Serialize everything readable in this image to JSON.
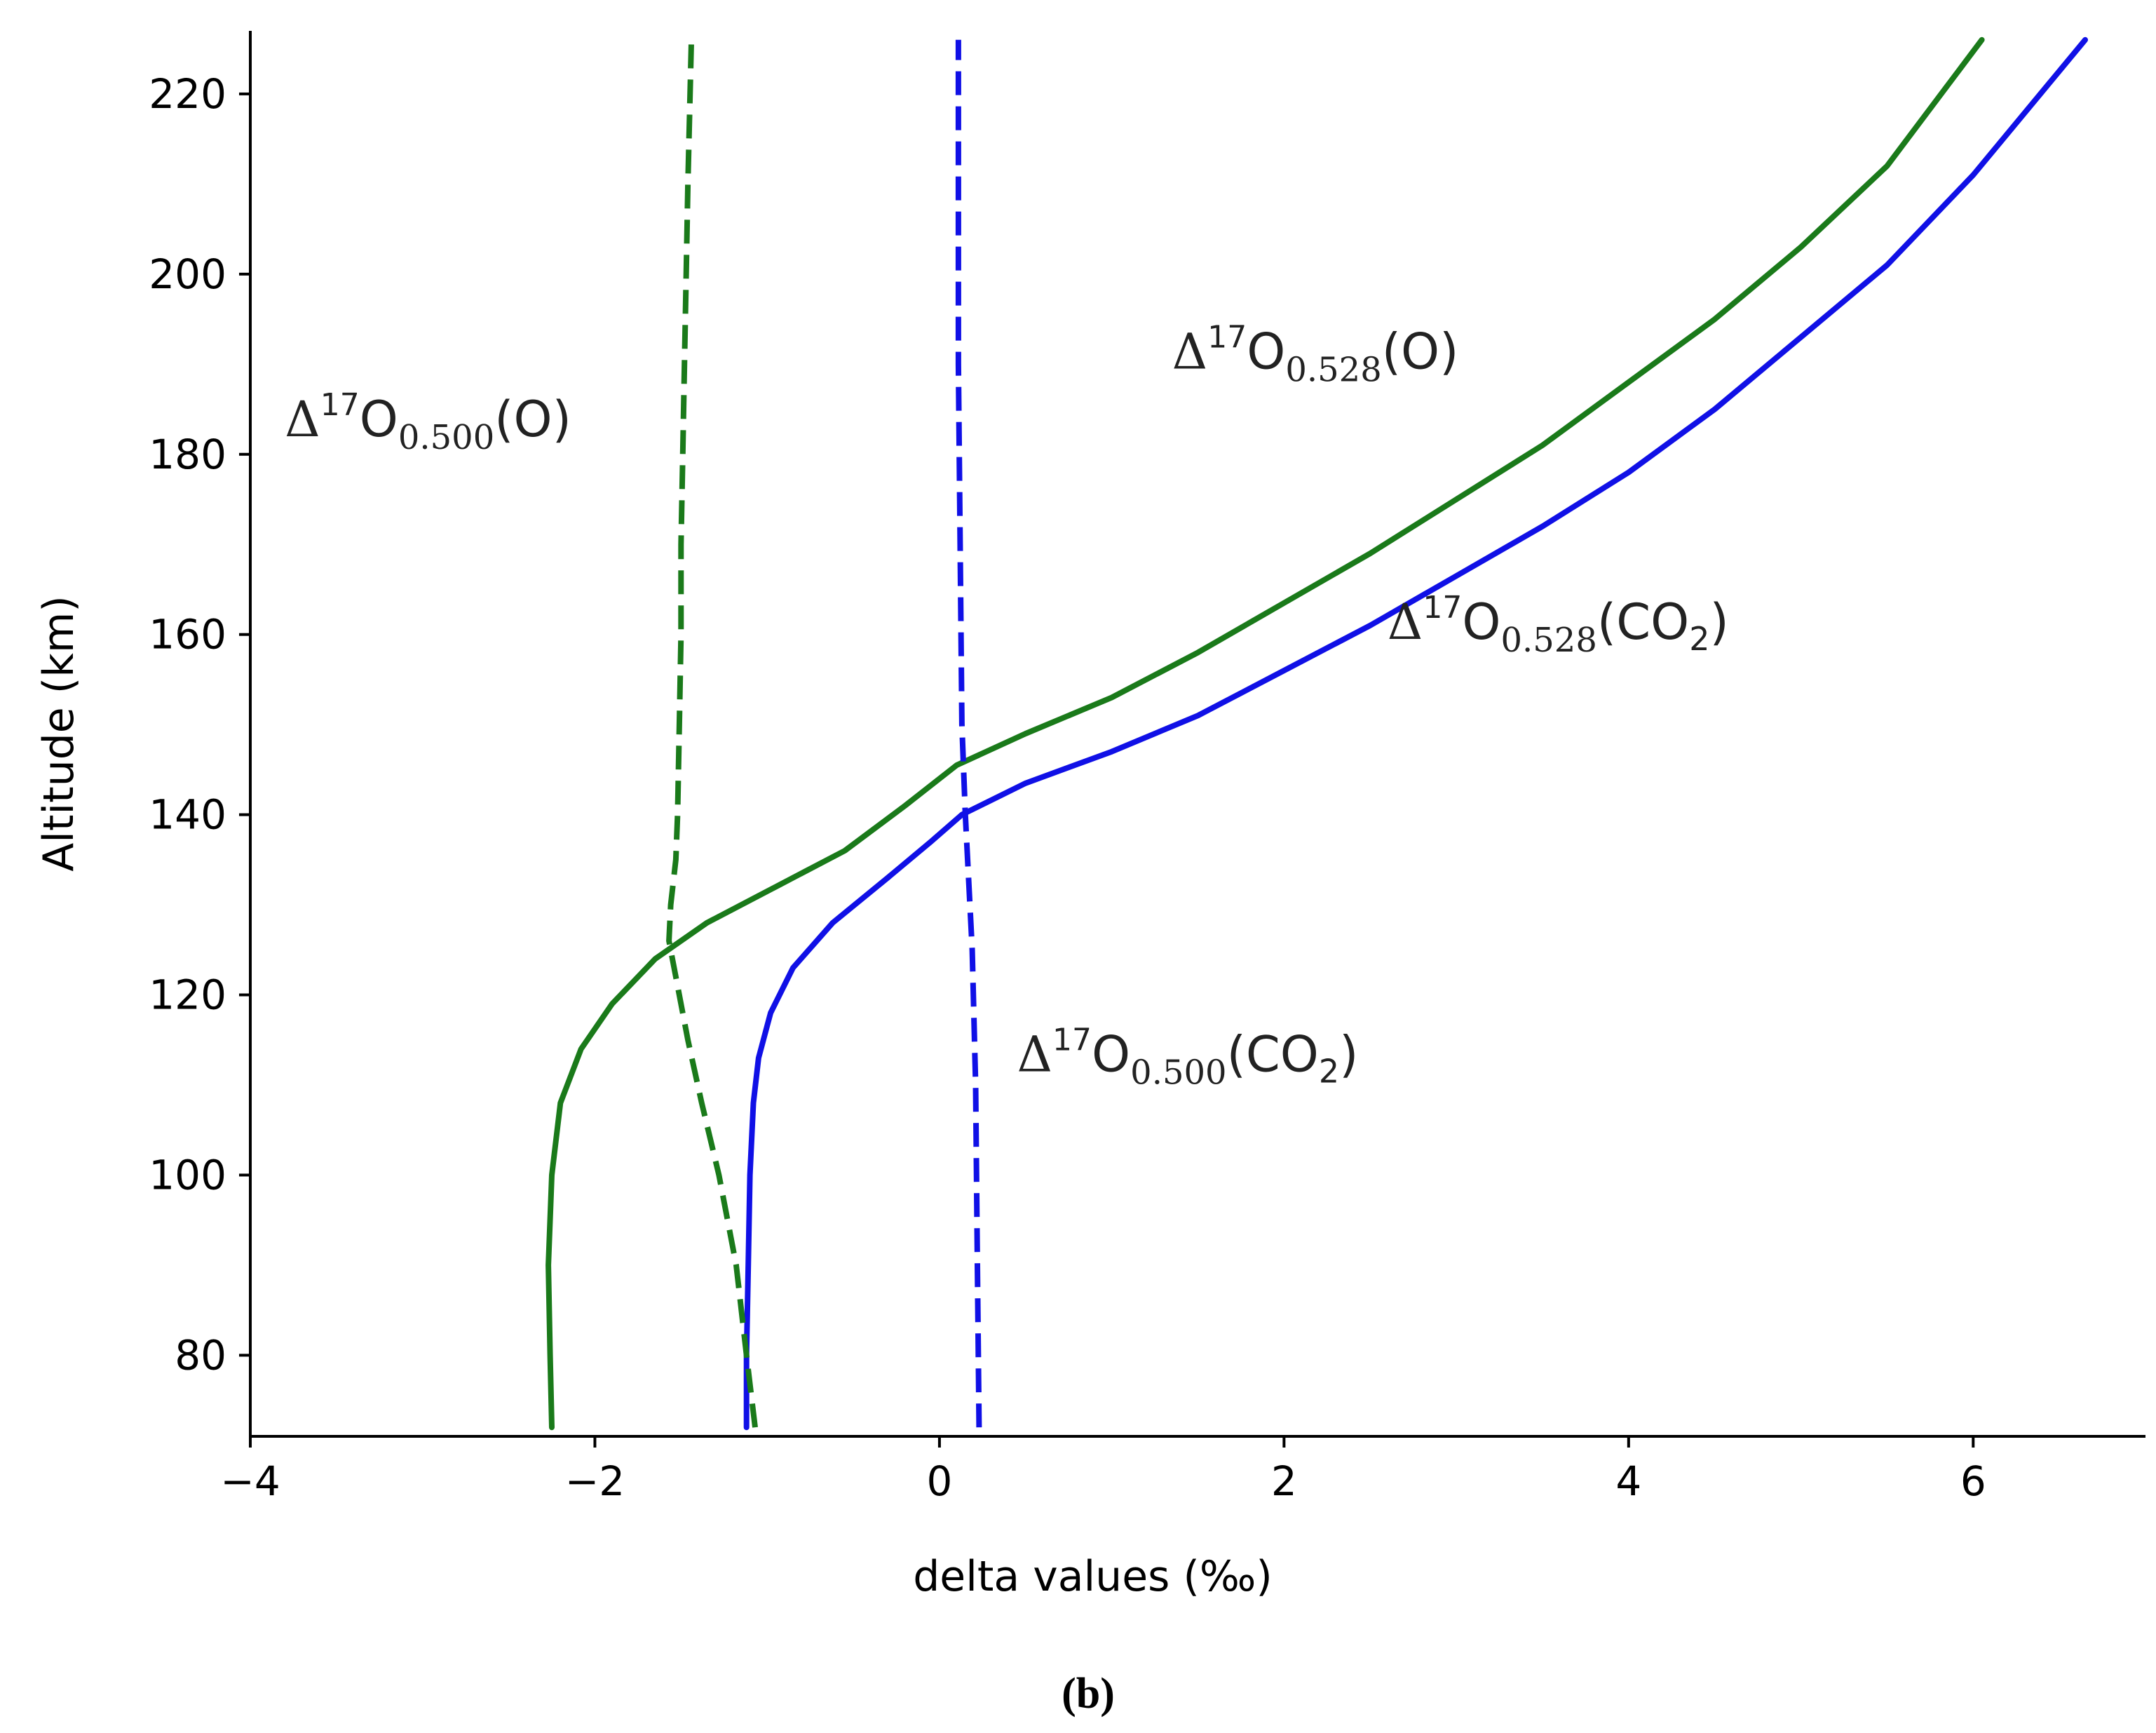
{
  "chart_data": {
    "type": "line",
    "xlabel": "delta values (‰)",
    "ylabel": "Altitude (km)",
    "xlim": [
      -4,
      7
    ],
    "ylim": [
      71,
      227
    ],
    "xticks": [
      -4,
      -2,
      0,
      2,
      4,
      6
    ],
    "xtick_labels": [
      "−4",
      "−2",
      "0",
      "2",
      "4",
      "6"
    ],
    "yticks": [
      80,
      100,
      120,
      140,
      160,
      180,
      200,
      220
    ],
    "ytick_labels": [
      "80",
      "100",
      "120",
      "140",
      "160",
      "180",
      "200",
      "220"
    ],
    "grid": false,
    "panel_label": "(b)",
    "series": [
      {
        "key": "d17O_0528_O",
        "color": "#1a7a1a",
        "dash": "solid",
        "points": [
          [
            -2.25,
            72
          ],
          [
            -2.26,
            80
          ],
          [
            -2.27,
            90
          ],
          [
            -2.25,
            100
          ],
          [
            -2.2,
            108
          ],
          [
            -2.08,
            114
          ],
          [
            -1.9,
            119
          ],
          [
            -1.65,
            124
          ],
          [
            -1.35,
            128
          ],
          [
            -0.95,
            132
          ],
          [
            -0.55,
            136
          ],
          [
            -0.2,
            141
          ],
          [
            0.1,
            145.5
          ],
          [
            0.5,
            149
          ],
          [
            1.0,
            153
          ],
          [
            1.5,
            158
          ],
          [
            2.0,
            163.5
          ],
          [
            2.5,
            169
          ],
          [
            3.0,
            175
          ],
          [
            3.5,
            181
          ],
          [
            4.0,
            188
          ],
          [
            4.5,
            195
          ],
          [
            5.0,
            203
          ],
          [
            5.5,
            212
          ],
          [
            6.05,
            226
          ]
        ]
      },
      {
        "key": "d17O_0528_CO2",
        "color": "#1010e6",
        "dash": "solid",
        "points": [
          [
            -1.12,
            72
          ],
          [
            -1.12,
            80
          ],
          [
            -1.11,
            90
          ],
          [
            -1.1,
            100
          ],
          [
            -1.08,
            108
          ],
          [
            -1.05,
            113
          ],
          [
            -0.98,
            118
          ],
          [
            -0.85,
            123
          ],
          [
            -0.62,
            128
          ],
          [
            -0.3,
            133
          ],
          [
            -0.05,
            137
          ],
          [
            0.13,
            140
          ],
          [
            0.5,
            143.5
          ],
          [
            1.0,
            147
          ],
          [
            1.5,
            151
          ],
          [
            2.0,
            156
          ],
          [
            2.5,
            161
          ],
          [
            3.0,
            166.5
          ],
          [
            3.5,
            172
          ],
          [
            4.0,
            178
          ],
          [
            4.5,
            185
          ],
          [
            5.0,
            193
          ],
          [
            5.5,
            201
          ],
          [
            6.0,
            211
          ],
          [
            6.65,
            226
          ]
        ]
      },
      {
        "key": "d17O_0500_O",
        "color": "#1a7a1a",
        "dash": "dashed",
        "points": [
          [
            -1.07,
            72
          ],
          [
            -1.12,
            80
          ],
          [
            -1.18,
            90
          ],
          [
            -1.28,
            100
          ],
          [
            -1.38,
            108
          ],
          [
            -1.46,
            115
          ],
          [
            -1.53,
            122
          ],
          [
            -1.57,
            126
          ],
          [
            -1.56,
            130
          ],
          [
            -1.53,
            135
          ],
          [
            -1.52,
            140
          ],
          [
            -1.51,
            150
          ],
          [
            -1.5,
            160
          ],
          [
            -1.5,
            170
          ],
          [
            -1.49,
            180
          ],
          [
            -1.48,
            190
          ],
          [
            -1.47,
            200
          ],
          [
            -1.46,
            210
          ],
          [
            -1.44,
            226
          ]
        ]
      },
      {
        "key": "d17O_0500_CO2",
        "color": "#1010e6",
        "dash": "dashed",
        "points": [
          [
            0.23,
            72
          ],
          [
            0.22,
            90
          ],
          [
            0.21,
            110
          ],
          [
            0.19,
            125
          ],
          [
            0.15,
            140
          ],
          [
            0.13,
            150
          ],
          [
            0.12,
            170
          ],
          [
            0.11,
            190
          ],
          [
            0.11,
            210
          ],
          [
            0.11,
            226
          ]
        ]
      }
    ],
    "annotations": [
      {
        "key": "d17O_0500_O",
        "pre": "Δ",
        "sup": "17",
        "base": "O",
        "sub": "0.500",
        "post": "(O)",
        "x": -3.8,
        "y": 182
      },
      {
        "key": "d17O_0528_O",
        "pre": "Δ",
        "sup": "17",
        "base": "O",
        "sub": "0.528",
        "post": "(O)",
        "x": 1.35,
        "y": 189.5
      },
      {
        "key": "d17O_0528_CO2",
        "pre": "Δ",
        "sup": "17",
        "base": "O",
        "sub": "0.528",
        "post": "(CO",
        "sub2": "2",
        "post2": ")",
        "x": 2.6,
        "y": 159.5
      },
      {
        "key": "d17O_0500_CO2",
        "pre": "Δ",
        "sup": "17",
        "base": "O",
        "sub": "0.500",
        "post": "(CO",
        "sub2": "2",
        "post2": ")",
        "x": 0.45,
        "y": 111.5
      }
    ]
  }
}
